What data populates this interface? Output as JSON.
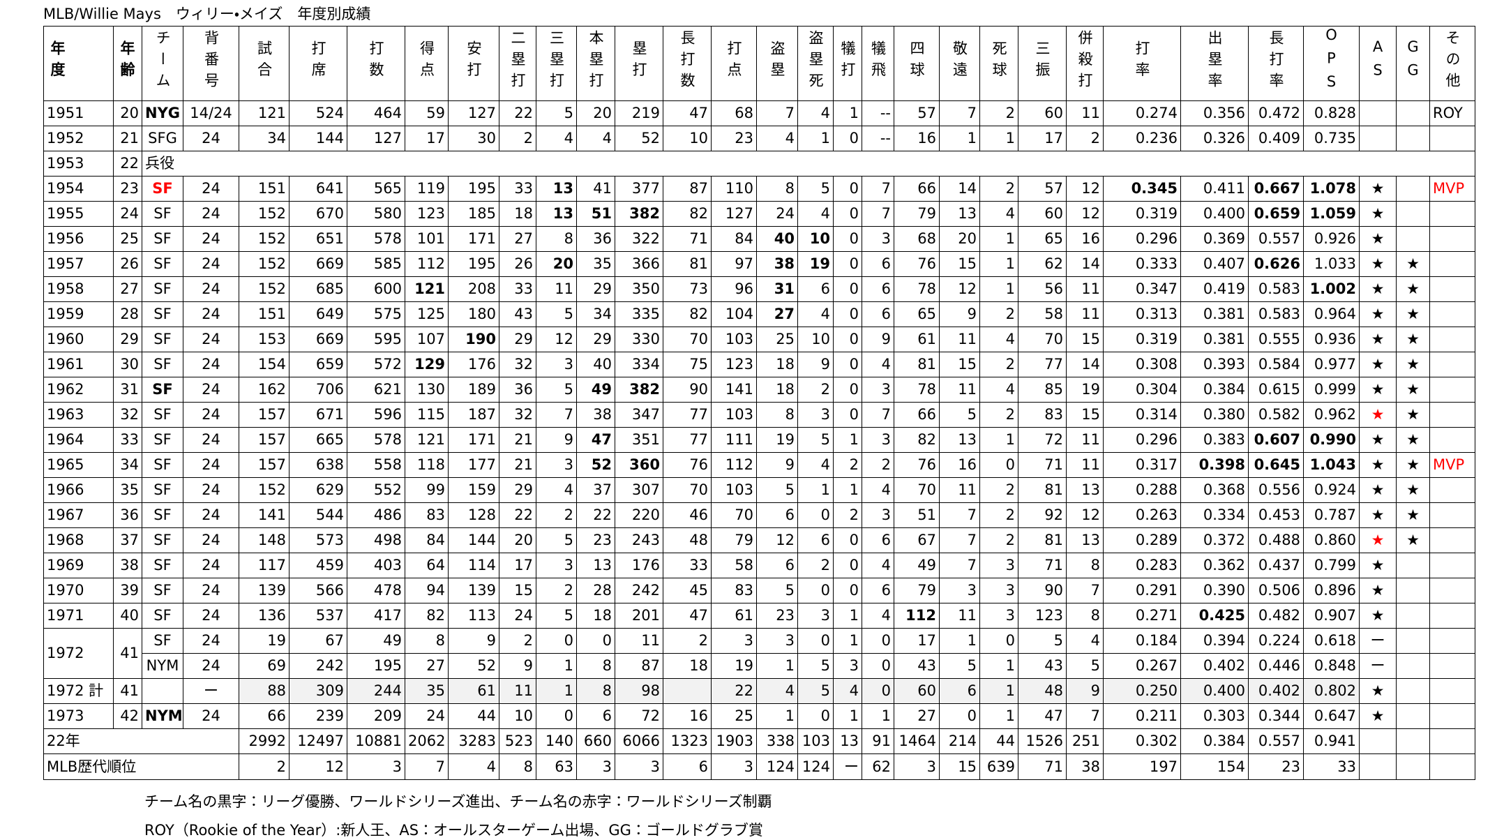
{
  "title": "MLB/Willie Mays　ウィリー・メイズ　年度別成績",
  "table": {
    "header": [
      "年度",
      "年齢",
      "チーム",
      "背番号",
      "試合",
      "打席",
      "打数",
      "得点",
      "安打",
      "二塁打",
      "三塁打",
      "本塁打",
      "塁打",
      "長打数",
      "打点",
      "盗塁",
      "盗塁死",
      "犠打",
      "犠飛",
      "四球",
      "敬遠",
      "死球",
      "三振",
      "併殺打",
      "打率",
      "出塁率",
      "長打率",
      "OPS",
      "AS",
      "GG",
      "その他"
    ],
    "rows": [
      [
        "1951",
        "20",
        {
          "text": "NYG",
          "bold": true
        },
        "14/24",
        "121",
        "524",
        "464",
        "59",
        "127",
        "22",
        "5",
        "20",
        "219",
        "47",
        "68",
        "7",
        "4",
        "1",
        "--",
        "57",
        "7",
        "2",
        "60",
        "11",
        "0.274",
        "0.356",
        "0.472",
        "0.828",
        null,
        null,
        "ROY"
      ],
      [
        "1952",
        "21",
        "SFG",
        "24",
        "34",
        "144",
        "127",
        "17",
        "30",
        "2",
        "4",
        "4",
        "52",
        "10",
        "23",
        "4",
        "1",
        "0",
        "--",
        "16",
        "1",
        "1",
        "17",
        "2",
        "0.236",
        "0.326",
        "0.409",
        "0.735",
        null,
        null,
        null
      ],
      [
        "1953",
        "22",
        {
          "text": "兵役",
          "colspan": 29
        }
      ],
      [
        "1954",
        "23",
        {
          "text": "SF",
          "bold": true,
          "color": "#ff0000"
        },
        "24",
        "151",
        "641",
        "565",
        "119",
        "195",
        "33",
        {
          "text": "13",
          "bold": true
        },
        "41",
        "377",
        "87",
        "110",
        "8",
        "5",
        "0",
        "7",
        "66",
        "14",
        "2",
        "57",
        "12",
        {
          "text": "0.345",
          "bold": true
        },
        "0.411",
        {
          "text": "0.667",
          "bold": true
        },
        {
          "text": "1.078",
          "bold": true
        },
        "★",
        null,
        {
          "text": "MVP",
          "color": "#ff0000"
        }
      ],
      [
        "1955",
        "24",
        "SF",
        "24",
        "152",
        "670",
        "580",
        "123",
        "185",
        "18",
        {
          "text": "13",
          "bold": true
        },
        {
          "text": "51",
          "bold": true
        },
        {
          "text": "382",
          "bold": true
        },
        "82",
        "127",
        "24",
        "4",
        "0",
        "7",
        "79",
        "13",
        "4",
        "60",
        "12",
        "0.319",
        "0.400",
        {
          "text": "0.659",
          "bold": true
        },
        {
          "text": "1.059",
          "bold": true
        },
        "★",
        null,
        null
      ],
      [
        "1956",
        "25",
        "SF",
        "24",
        "152",
        "651",
        "578",
        "101",
        "171",
        "27",
        "8",
        "36",
        "322",
        "71",
        "84",
        {
          "text": "40",
          "bold": true
        },
        {
          "text": "10",
          "bold": true
        },
        "0",
        "3",
        "68",
        "20",
        "1",
        "65",
        "16",
        "0.296",
        "0.369",
        "0.557",
        "0.926",
        "★",
        null,
        null
      ],
      [
        "1957",
        "26",
        "SF",
        "24",
        "152",
        "669",
        "585",
        "112",
        "195",
        "26",
        {
          "text": "20",
          "bold": true
        },
        "35",
        "366",
        "81",
        "97",
        {
          "text": "38",
          "bold": true
        },
        {
          "text": "19",
          "bold": true
        },
        "0",
        "6",
        "76",
        "15",
        "1",
        "62",
        "14",
        "0.333",
        "0.407",
        {
          "text": "0.626",
          "bold": true
        },
        "1.033",
        "★",
        "★",
        null
      ],
      [
        "1958",
        "27",
        "SF",
        "24",
        "152",
        "685",
        "600",
        {
          "text": "121",
          "bold": true
        },
        "208",
        "33",
        "11",
        "29",
        "350",
        "73",
        "96",
        {
          "text": "31",
          "bold": true
        },
        "6",
        "0",
        "6",
        "78",
        "12",
        "1",
        "56",
        "11",
        "0.347",
        "0.419",
        "0.583",
        {
          "text": "1.002",
          "bold": true
        },
        "★",
        "★",
        null
      ],
      [
        "1959",
        "28",
        "SF",
        "24",
        "151",
        "649",
        "575",
        "125",
        "180",
        "43",
        "5",
        "34",
        "335",
        "82",
        "104",
        {
          "text": "27",
          "bold": true
        },
        "4",
        "0",
        "6",
        "65",
        "9",
        "2",
        "58",
        "11",
        "0.313",
        "0.381",
        "0.583",
        "0.964",
        "★",
        "★",
        null
      ],
      [
        "1960",
        "29",
        "SF",
        "24",
        "153",
        "669",
        "595",
        "107",
        {
          "text": "190",
          "bold": true
        },
        "29",
        "12",
        "29",
        "330",
        "70",
        "103",
        "25",
        "10",
        "0",
        "9",
        "61",
        "11",
        "4",
        "70",
        "15",
        "0.319",
        "0.381",
        "0.555",
        "0.936",
        "★",
        "★",
        null
      ],
      [
        "1961",
        "30",
        "SF",
        "24",
        "154",
        "659",
        "572",
        {
          "text": "129",
          "bold": true
        },
        "176",
        "32",
        "3",
        "40",
        "334",
        "75",
        "123",
        "18",
        "9",
        "0",
        "4",
        "81",
        "15",
        "2",
        "77",
        "14",
        "0.308",
        "0.393",
        "0.584",
        "0.977",
        "★",
        "★",
        null
      ],
      [
        "1962",
        "31",
        {
          "text": "SF",
          "bold": true
        },
        "24",
        "162",
        "706",
        "621",
        "130",
        "189",
        "36",
        "5",
        {
          "text": "49",
          "bold": true
        },
        {
          "text": "382",
          "bold": true
        },
        "90",
        "141",
        "18",
        "2",
        "0",
        "3",
        "78",
        "11",
        "4",
        "85",
        "19",
        "0.304",
        "0.384",
        "0.615",
        "0.999",
        "★",
        "★",
        null
      ],
      [
        "1963",
        "32",
        "SF",
        "24",
        "157",
        "671",
        "596",
        "115",
        "187",
        "32",
        "7",
        "38",
        "347",
        "77",
        "103",
        "8",
        "3",
        "0",
        "7",
        "66",
        "5",
        "2",
        "83",
        "15",
        "0.314",
        "0.380",
        "0.582",
        "0.962",
        {
          "text": "★",
          "color": "#ff0000"
        },
        "★",
        null
      ],
      [
        "1964",
        "33",
        "SF",
        "24",
        "157",
        "665",
        "578",
        "121",
        "171",
        "21",
        "9",
        {
          "text": "47",
          "bold": true
        },
        "351",
        "77",
        "111",
        "19",
        "5",
        "1",
        "3",
        "82",
        "13",
        "1",
        "72",
        "11",
        "0.296",
        "0.383",
        {
          "text": "0.607",
          "bold": true
        },
        {
          "text": "0.990",
          "bold": true
        },
        "★",
        "★",
        null
      ],
      [
        "1965",
        "34",
        "SF",
        "24",
        "157",
        "638",
        "558",
        "118",
        "177",
        "21",
        "3",
        {
          "text": "52",
          "bold": true
        },
        {
          "text": "360",
          "bold": true
        },
        "76",
        "112",
        "9",
        "4",
        "2",
        "2",
        "76",
        "16",
        "0",
        "71",
        "11",
        "0.317",
        {
          "text": "0.398",
          "bold": true
        },
        {
          "text": "0.645",
          "bold": true
        },
        {
          "text": "1.043",
          "bold": true
        },
        "★",
        "★",
        {
          "text": "MVP",
          "color": "#ff0000"
        }
      ],
      [
        "1966",
        "35",
        "SF",
        "24",
        "152",
        "629",
        "552",
        "99",
        "159",
        "29",
        "4",
        "37",
        "307",
        "70",
        "103",
        "5",
        "1",
        "1",
        "4",
        "70",
        "11",
        "2",
        "81",
        "13",
        "0.288",
        "0.368",
        "0.556",
        "0.924",
        "★",
        "★",
        null
      ],
      [
        "1967",
        "36",
        "SF",
        "24",
        "141",
        "544",
        "486",
        "83",
        "128",
        "22",
        "2",
        "22",
        "220",
        "46",
        "70",
        "6",
        "0",
        "2",
        "3",
        "51",
        "7",
        "2",
        "92",
        "12",
        "0.263",
        "0.334",
        "0.453",
        "0.787",
        "★",
        "★",
        null
      ],
      [
        "1968",
        "37",
        "SF",
        "24",
        "148",
        "573",
        "498",
        "84",
        "144",
        "20",
        "5",
        "23",
        "243",
        "48",
        "79",
        "12",
        "6",
        "0",
        "6",
        "67",
        "7",
        "2",
        "81",
        "13",
        "0.289",
        "0.372",
        "0.488",
        "0.860",
        {
          "text": "★",
          "color": "#ff0000"
        },
        "★",
        null
      ],
      [
        "1969",
        "38",
        "SF",
        "24",
        "117",
        "459",
        "403",
        "64",
        "114",
        "17",
        "3",
        "13",
        "176",
        "33",
        "58",
        "6",
        "2",
        "0",
        "4",
        "49",
        "7",
        "3",
        "71",
        "8",
        "0.283",
        "0.362",
        "0.437",
        "0.799",
        "★",
        null,
        null
      ],
      [
        "1970",
        "39",
        "SF",
        "24",
        "139",
        "566",
        "478",
        "94",
        "139",
        "15",
        "2",
        "28",
        "242",
        "45",
        "83",
        "5",
        "0",
        "0",
        "6",
        "79",
        "3",
        "3",
        "90",
        "7",
        "0.291",
        "0.390",
        "0.506",
        "0.896",
        "★",
        null,
        null
      ],
      [
        "1971",
        "40",
        "SF",
        "24",
        "136",
        "537",
        "417",
        "82",
        "113",
        "24",
        "5",
        "18",
        "201",
        "47",
        "61",
        "23",
        "3",
        "1",
        "4",
        {
          "text": "112",
          "bold": true
        },
        "11",
        "3",
        "123",
        "8",
        "0.271",
        {
          "text": "0.425",
          "bold": true
        },
        "0.482",
        "0.907",
        "★",
        null,
        null
      ],
      [
        {
          "text": "1972",
          "rowspan": 2
        },
        {
          "text": "41",
          "rowspan": 2
        },
        "SF",
        "24",
        "19",
        "67",
        "49",
        "8",
        "9",
        "2",
        "0",
        "0",
        "11",
        "2",
        "3",
        "3",
        "0",
        "1",
        "0",
        "17",
        "1",
        "0",
        "5",
        "4",
        "0.184",
        "0.394",
        "0.224",
        "0.618",
        "ー",
        null,
        null
      ],
      [
        "NYM",
        "24",
        "69",
        "242",
        "195",
        "27",
        "52",
        "9",
        "1",
        "8",
        "87",
        "18",
        "19",
        "1",
        "5",
        "3",
        "0",
        "43",
        "5",
        "1",
        "43",
        "5",
        "0.267",
        "0.402",
        "0.446",
        "0.848",
        "ー",
        null,
        null
      ],
      [
        "1972 計",
        "41",
        null,
        "ー",
        "88",
        "309",
        "244",
        "35",
        "61",
        "11",
        "1",
        "8",
        "98",
        null,
        "22",
        "4",
        "5",
        "4",
        "0",
        "60",
        "6",
        "1",
        "48",
        "9",
        "0.250",
        "0.400",
        "0.402",
        "0.802",
        "★",
        null,
        null
      ],
      [
        "1973",
        "42",
        {
          "text": "NYM",
          "bold": true
        },
        "24",
        "66",
        "239",
        "209",
        "24",
        "44",
        "10",
        "0",
        "6",
        "72",
        "16",
        "25",
        "1",
        "0",
        "1",
        "1",
        "27",
        "0",
        "1",
        "47",
        "7",
        "0.211",
        "0.303",
        "0.344",
        "0.647",
        "★",
        null,
        null
      ],
      [
        {
          "text": "22年",
          "colspan": 4
        },
        "2992",
        "12497",
        "10881",
        "2062",
        "3283",
        "523",
        "140",
        "660",
        "6066",
        "1323",
        "1903",
        "338",
        "103",
        "13",
        "91",
        "1464",
        "214",
        "44",
        "1526",
        "251",
        "0.302",
        "0.384",
        "0.557",
        "0.941",
        null,
        null,
        null
      ],
      [
        {
          "text": "MLB歴代順位",
          "colspan": 4
        },
        "2",
        "12",
        "3",
        "7",
        "4",
        "8",
        "63",
        "3",
        "3",
        "6",
        "3",
        "124",
        "124",
        "ー",
        "62",
        "3",
        "15",
        "639",
        "71",
        "38",
        "197",
        "154",
        "23",
        "33",
        null,
        null,
        null
      ]
    ]
  },
  "notes": [
    "チーム名の黒字：リーグ優勝、ワールドシリーズ進出、チーム名の赤字：ワールドシリーズ制覇",
    "ROY（Rookie of the Year）:新人王、AS：オールスターゲーム出場、GG：ゴールドグラブ賞"
  ]
}
